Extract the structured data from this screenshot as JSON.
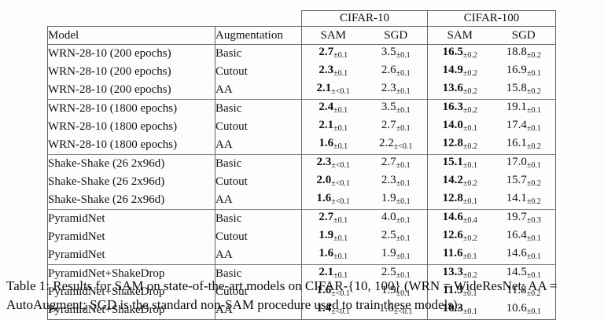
{
  "caption": "Table 1: Results for SAM on state-of-the-art models on CIFAR-{10, 100} (WRN = WideResNet; AA = AutoAugment; SGD is the standard non-SAM procedure used to train these models).",
  "table": {
    "group_headers": [
      "CIFAR-10",
      "CIFAR-100"
    ],
    "columns": [
      "Model",
      "Augmentation",
      "SAM",
      "SGD",
      "SAM",
      "SGD"
    ],
    "groups": [
      {
        "rows": [
          {
            "model": "WRN-28-10 (200 epochs)",
            "augmentation": "Basic",
            "cifar10_sam": {
              "value": "2.7",
              "pm": "±0.1"
            },
            "cifar10_sgd": {
              "value": "3.5",
              "pm": "±0.1"
            },
            "cifar100_sam": {
              "value": "16.5",
              "pm": "±0.2"
            },
            "cifar100_sgd": {
              "value": "18.8",
              "pm": "±0.2"
            }
          },
          {
            "model": "WRN-28-10 (200 epochs)",
            "augmentation": "Cutout",
            "cifar10_sam": {
              "value": "2.3",
              "pm": "±0.1"
            },
            "cifar10_sgd": {
              "value": "2.6",
              "pm": "±0.1"
            },
            "cifar100_sam": {
              "value": "14.9",
              "pm": "±0.2"
            },
            "cifar100_sgd": {
              "value": "16.9",
              "pm": "±0.1"
            }
          },
          {
            "model": "WRN-28-10 (200 epochs)",
            "augmentation": "AA",
            "cifar10_sam": {
              "value": "2.1",
              "pm": "±<0.1"
            },
            "cifar10_sgd": {
              "value": "2.3",
              "pm": "±0.1"
            },
            "cifar100_sam": {
              "value": "13.6",
              "pm": "±0.2"
            },
            "cifar100_sgd": {
              "value": "15.8",
              "pm": "±0.2"
            }
          }
        ]
      },
      {
        "rows": [
          {
            "model": "WRN-28-10 (1800 epochs)",
            "augmentation": "Basic",
            "cifar10_sam": {
              "value": "2.4",
              "pm": "±0.1"
            },
            "cifar10_sgd": {
              "value": "3.5",
              "pm": "±0.1"
            },
            "cifar100_sam": {
              "value": "16.3",
              "pm": "±0.2"
            },
            "cifar100_sgd": {
              "value": "19.1",
              "pm": "±0.1"
            }
          },
          {
            "model": "WRN-28-10 (1800 epochs)",
            "augmentation": "Cutout",
            "cifar10_sam": {
              "value": "2.1",
              "pm": "±0.1"
            },
            "cifar10_sgd": {
              "value": "2.7",
              "pm": "±0.1"
            },
            "cifar100_sam": {
              "value": "14.0",
              "pm": "±0.1"
            },
            "cifar100_sgd": {
              "value": "17.4",
              "pm": "±0.1"
            }
          },
          {
            "model": "WRN-28-10 (1800 epochs)",
            "augmentation": "AA",
            "cifar10_sam": {
              "value": "1.6",
              "pm": "±0.1"
            },
            "cifar10_sgd": {
              "value": "2.2",
              "pm": "±<0.1"
            },
            "cifar100_sam": {
              "value": "12.8",
              "pm": "±0.2"
            },
            "cifar100_sgd": {
              "value": "16.1",
              "pm": "±0.2"
            }
          }
        ]
      },
      {
        "rows": [
          {
            "model": "Shake-Shake (26 2x96d)",
            "augmentation": "Basic",
            "cifar10_sam": {
              "value": "2.3",
              "pm": "±<0.1"
            },
            "cifar10_sgd": {
              "value": "2.7",
              "pm": "±0.1"
            },
            "cifar100_sam": {
              "value": "15.1",
              "pm": "±0.1"
            },
            "cifar100_sgd": {
              "value": "17.0",
              "pm": "±0.1"
            }
          },
          {
            "model": "Shake-Shake (26 2x96d)",
            "augmentation": "Cutout",
            "cifar10_sam": {
              "value": "2.0",
              "pm": "±<0.1"
            },
            "cifar10_sgd": {
              "value": "2.3",
              "pm": "±0.1"
            },
            "cifar100_sam": {
              "value": "14.2",
              "pm": "±0.2"
            },
            "cifar100_sgd": {
              "value": "15.7",
              "pm": "±0.2"
            }
          },
          {
            "model": "Shake-Shake (26 2x96d)",
            "augmentation": "AA",
            "cifar10_sam": {
              "value": "1.6",
              "pm": "±<0.1"
            },
            "cifar10_sgd": {
              "value": "1.9",
              "pm": "±0.1"
            },
            "cifar100_sam": {
              "value": "12.8",
              "pm": "±0.1"
            },
            "cifar100_sgd": {
              "value": "14.1",
              "pm": "±0.2"
            }
          }
        ]
      },
      {
        "rows": [
          {
            "model": "PyramidNet",
            "augmentation": "Basic",
            "cifar10_sam": {
              "value": "2.7",
              "pm": "±0.1"
            },
            "cifar10_sgd": {
              "value": "4.0",
              "pm": "±0.1"
            },
            "cifar100_sam": {
              "value": "14.6",
              "pm": "±0.4"
            },
            "cifar100_sgd": {
              "value": "19.7",
              "pm": "±0.3"
            }
          },
          {
            "model": "PyramidNet",
            "augmentation": "Cutout",
            "cifar10_sam": {
              "value": "1.9",
              "pm": "±0.1"
            },
            "cifar10_sgd": {
              "value": "2.5",
              "pm": "±0.1"
            },
            "cifar100_sam": {
              "value": "12.6",
              "pm": "±0.2"
            },
            "cifar100_sgd": {
              "value": "16.4",
              "pm": "±0.1"
            }
          },
          {
            "model": "PyramidNet",
            "augmentation": "AA",
            "cifar10_sam": {
              "value": "1.6",
              "pm": "±0.1"
            },
            "cifar10_sgd": {
              "value": "1.9",
              "pm": "±0.1"
            },
            "cifar100_sam": {
              "value": "11.6",
              "pm": "±0.1"
            },
            "cifar100_sgd": {
              "value": "14.6",
              "pm": "±0.1"
            }
          }
        ]
      },
      {
        "rows": [
          {
            "model": "PyramidNet+ShakeDrop",
            "augmentation": "Basic",
            "cifar10_sam": {
              "value": "2.1",
              "pm": "±0.1"
            },
            "cifar10_sgd": {
              "value": "2.5",
              "pm": "±0.1"
            },
            "cifar100_sam": {
              "value": "13.3",
              "pm": "±0.2"
            },
            "cifar100_sgd": {
              "value": "14.5",
              "pm": "±0.1"
            }
          },
          {
            "model": "PyramidNet+ShakeDrop",
            "augmentation": "Cutout",
            "cifar10_sam": {
              "value": "1.6",
              "pm": "±<0.1"
            },
            "cifar10_sgd": {
              "value": "1.9",
              "pm": "±0.1"
            },
            "cifar100_sam": {
              "value": "11.3",
              "pm": "±0.1"
            },
            "cifar100_sgd": {
              "value": "11.8",
              "pm": "±0.2"
            }
          },
          {
            "model": "PyramidNet+ShakeDrop",
            "augmentation": "AA",
            "cifar10_sam": {
              "value": "1.4",
              "pm": "±<0.1"
            },
            "cifar10_sgd": {
              "value": "1.6",
              "pm": "±<0.1"
            },
            "cifar100_sam": {
              "value": "10.3",
              "pm": "±0.1"
            },
            "cifar100_sgd": {
              "value": "10.6",
              "pm": "±0.1"
            }
          }
        ]
      }
    ]
  }
}
